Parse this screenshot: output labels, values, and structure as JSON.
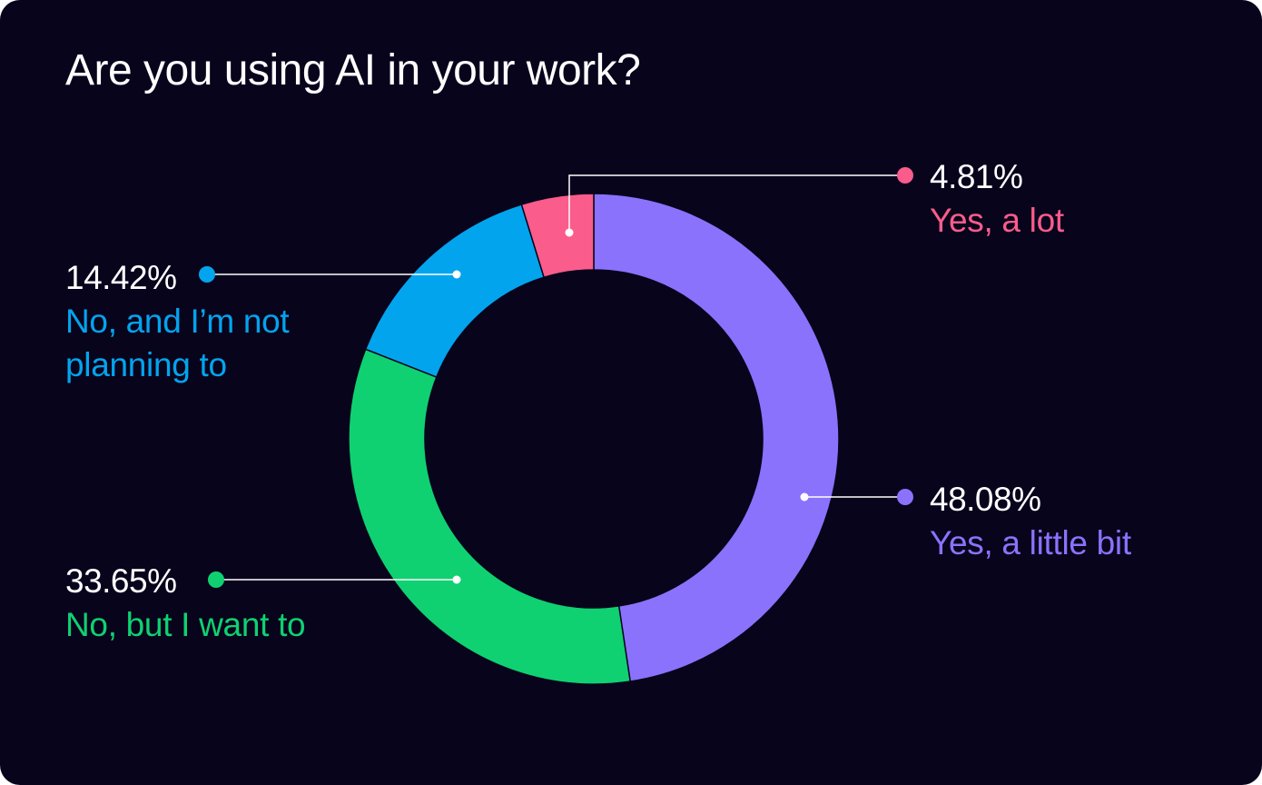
{
  "title": "Are you using AI in your work?",
  "colors": {
    "background": "#08041c",
    "text": "#ffffff"
  },
  "chart_data": {
    "type": "pie",
    "variant": "donut",
    "title": "Are you using AI in your work?",
    "legend": "none",
    "slices": [
      {
        "label": "Yes, a little bit",
        "value": 48.08,
        "display": "48.08%",
        "color": "#8b72fd"
      },
      {
        "label": "No, but I want to",
        "value": 33.65,
        "display": "33.65%",
        "color": "#0fd171"
      },
      {
        "label": "No, and I’m not planning to",
        "label_lines": [
          "No, and I’m not",
          "planning to"
        ],
        "value": 14.42,
        "display": "14.42%",
        "color": "#03a4ee"
      },
      {
        "label": "Yes, a lot",
        "value": 4.81,
        "display": "4.81%",
        "color": "#fa5c8b"
      }
    ]
  }
}
